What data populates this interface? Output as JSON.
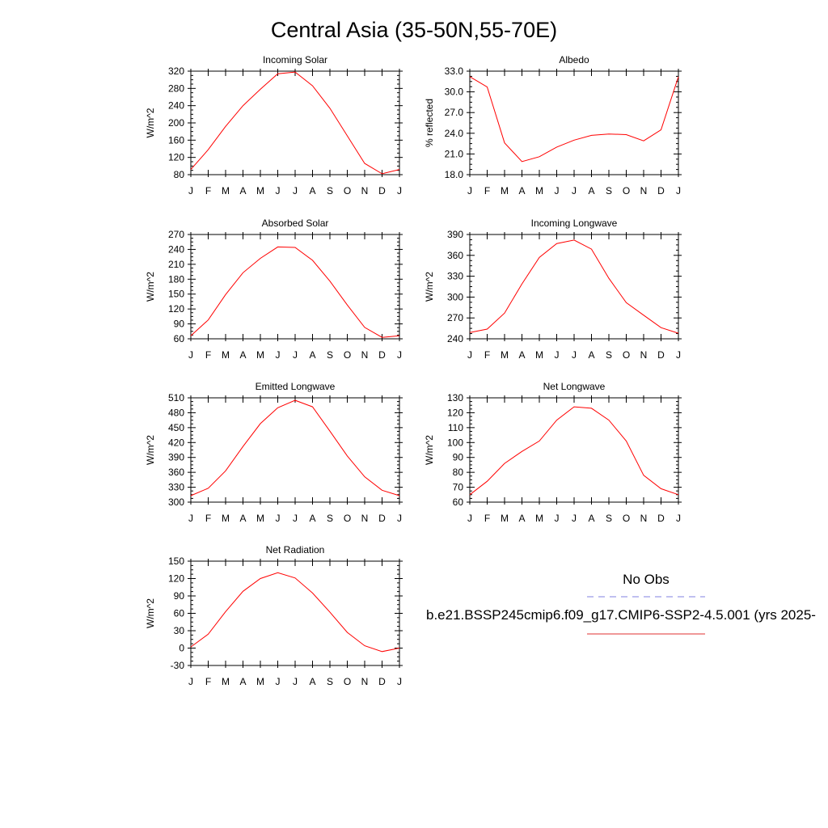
{
  "figure": {
    "title": "Central Asia (35-50N,55-70E)",
    "legend": {
      "obs_label": "No Obs",
      "obs_color": "#8080e0",
      "model_label": "b.e21.BSSP245cmip6.f09_g17.CMIP6-SSP2-4.5.001 (yrs 2025-",
      "model_color": "#e03030"
    }
  },
  "chart_data": [
    {
      "type": "line",
      "title": "Incoming Solar",
      "ylabel": "W/m^2",
      "categories": [
        "J",
        "F",
        "M",
        "A",
        "M",
        "J",
        "J",
        "A",
        "S",
        "O",
        "N",
        "D",
        "J"
      ],
      "ylim": [
        80,
        320
      ],
      "yticks": [
        "80",
        "120",
        "160",
        "200",
        "240",
        "280",
        "320"
      ],
      "series": [
        {
          "color": "#ff0000",
          "values": [
            92,
            138,
            192,
            240,
            278,
            314,
            318,
            286,
            234,
            170,
            106,
            82,
            92
          ]
        }
      ]
    },
    {
      "type": "line",
      "title": "Albedo",
      "ylabel": "% reflected",
      "categories": [
        "J",
        "F",
        "M",
        "A",
        "M",
        "J",
        "J",
        "A",
        "S",
        "O",
        "N",
        "D",
        "J"
      ],
      "ylim": [
        18,
        33
      ],
      "yticks": [
        "18.0",
        "21.0",
        "24.0",
        "27.0",
        "30.0",
        "33.0"
      ],
      "series": [
        {
          "color": "#ff0000",
          "values": [
            32.2,
            30.7,
            22.6,
            19.9,
            20.6,
            22.0,
            23.0,
            23.7,
            23.9,
            23.8,
            22.9,
            24.5,
            32.2
          ]
        }
      ]
    },
    {
      "type": "line",
      "title": "Absorbed Solar",
      "ylabel": "W/m^2",
      "categories": [
        "J",
        "F",
        "M",
        "A",
        "M",
        "J",
        "J",
        "A",
        "S",
        "O",
        "N",
        "D",
        "J"
      ],
      "ylim": [
        60,
        270
      ],
      "yticks": [
        "60",
        "90",
        "120",
        "150",
        "180",
        "210",
        "240",
        "270"
      ],
      "series": [
        {
          "color": "#ff0000",
          "values": [
            66,
            98,
            149,
            193,
            222,
            245,
            244,
            218,
            176,
            128,
            83,
            63,
            66
          ]
        }
      ]
    },
    {
      "type": "line",
      "title": "Incoming Longwave",
      "ylabel": "W/m^2",
      "categories": [
        "J",
        "F",
        "M",
        "A",
        "M",
        "J",
        "J",
        "A",
        "S",
        "O",
        "N",
        "D",
        "J"
      ],
      "ylim": [
        240,
        390
      ],
      "yticks": [
        "240",
        "270",
        "300",
        "330",
        "360",
        "390"
      ],
      "series": [
        {
          "color": "#ff0000",
          "values": [
            249,
            254,
            277,
            319,
            357,
            377,
            382,
            369,
            327,
            292,
            274,
            256,
            248
          ]
        }
      ]
    },
    {
      "type": "line",
      "title": "Emitted Longwave",
      "ylabel": "W/m^2",
      "categories": [
        "J",
        "F",
        "M",
        "A",
        "M",
        "J",
        "J",
        "A",
        "S",
        "O",
        "N",
        "D",
        "J"
      ],
      "ylim": [
        300,
        510
      ],
      "yticks": [
        "300",
        "330",
        "360",
        "390",
        "420",
        "450",
        "480",
        "510"
      ],
      "series": [
        {
          "color": "#ff0000",
          "values": [
            313,
            328,
            363,
            412,
            458,
            490,
            505,
            492,
            443,
            393,
            351,
            324,
            313
          ]
        }
      ]
    },
    {
      "type": "line",
      "title": "Net Longwave",
      "ylabel": "W/m^2",
      "categories": [
        "J",
        "F",
        "M",
        "A",
        "M",
        "J",
        "J",
        "A",
        "S",
        "O",
        "N",
        "D",
        "J"
      ],
      "ylim": [
        60,
        130
      ],
      "yticks": [
        "60",
        "70",
        "80",
        "90",
        "100",
        "110",
        "120",
        "130"
      ],
      "series": [
        {
          "color": "#ff0000",
          "values": [
            65,
            74,
            86,
            94,
            101,
            115,
            124,
            123,
            115,
            101,
            78,
            69,
            65
          ]
        }
      ]
    },
    {
      "type": "line",
      "title": "Net Radiation",
      "ylabel": "W/m^2",
      "categories": [
        "J",
        "F",
        "M",
        "A",
        "M",
        "J",
        "J",
        "A",
        "S",
        "O",
        "N",
        "D",
        "J"
      ],
      "ylim": [
        -30,
        150
      ],
      "yticks": [
        "-30",
        "0",
        "30",
        "60",
        "90",
        "120",
        "150"
      ],
      "series": [
        {
          "color": "#ff0000",
          "values": [
            2,
            24,
            63,
            98,
            120,
            130,
            121,
            95,
            62,
            27,
            4,
            -6,
            0
          ]
        }
      ]
    }
  ]
}
